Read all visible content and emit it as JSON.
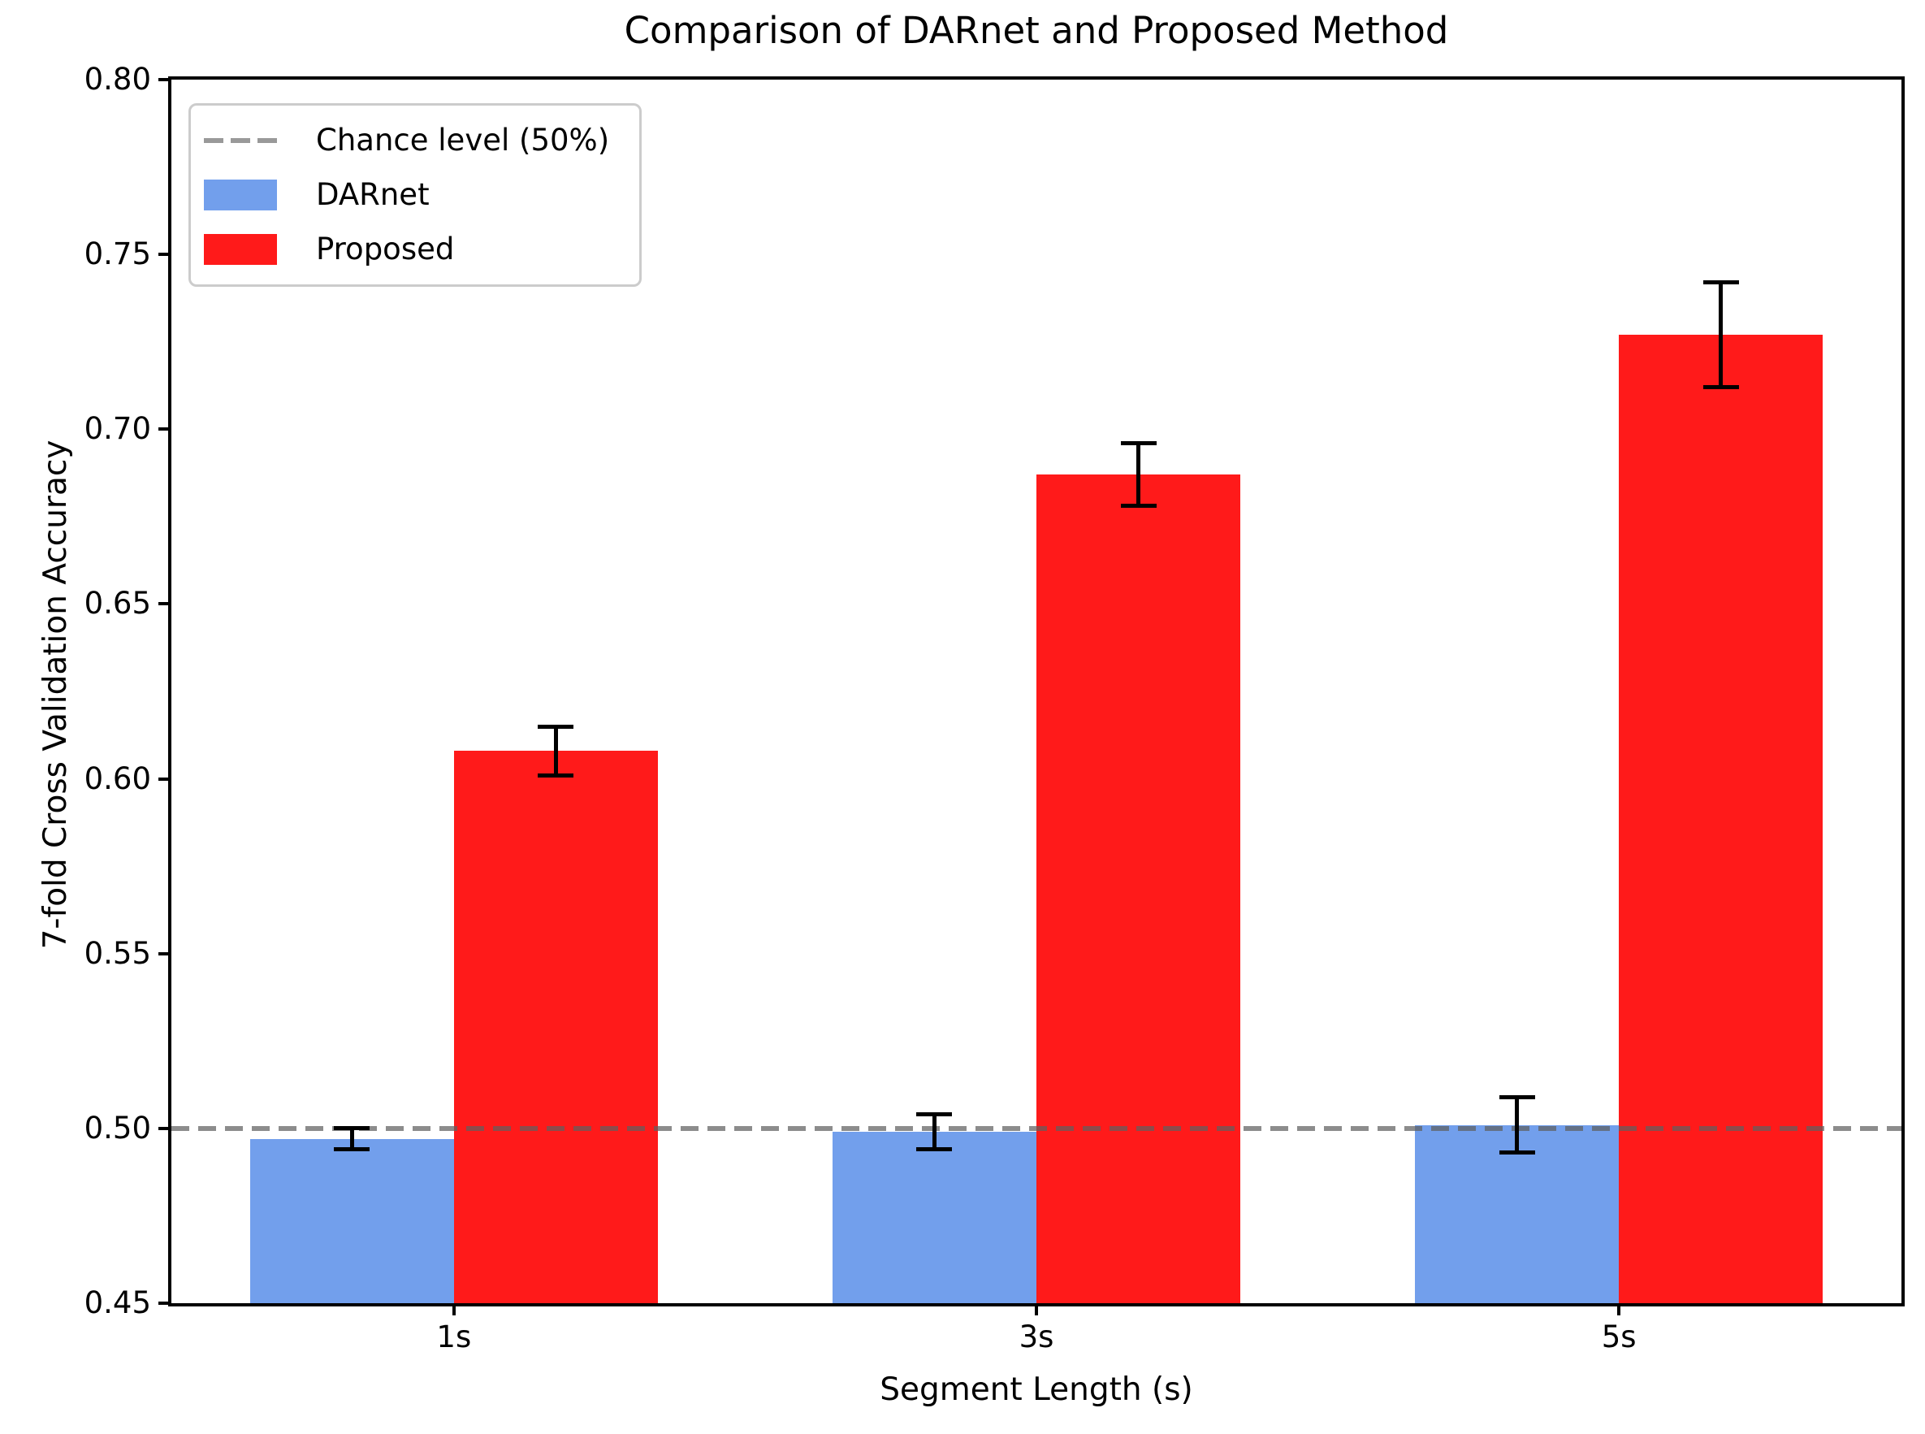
{
  "title": "Comparison of DARnet and Proposed Method",
  "chart_data": {
    "type": "bar",
    "title": "Comparison of DARnet and Proposed Method",
    "xlabel": "Segment Length (s)",
    "ylabel": "7-fold Cross Validation Accuracy",
    "categories": [
      "1s",
      "3s",
      "5s"
    ],
    "series": [
      {
        "name": "DARnet",
        "color": "#729fec",
        "values": [
          0.497,
          0.499,
          0.501
        ],
        "errors": [
          0.003,
          0.005,
          0.008
        ]
      },
      {
        "name": "Proposed",
        "color": "#ff1a1a",
        "values": [
          0.608,
          0.687,
          0.727
        ],
        "errors": [
          0.007,
          0.009,
          0.015
        ]
      }
    ],
    "reference_line": {
      "label": "Chance level (50%)",
      "value": 0.5,
      "color": "#808080",
      "style": "dashed"
    },
    "ylim": [
      0.45,
      0.8
    ],
    "yticks": [
      0.45,
      0.5,
      0.55,
      0.6,
      0.65,
      0.7,
      0.75,
      0.8
    ],
    "bar_width": 0.35,
    "grid": false,
    "error_bars": true,
    "legend_position": "upper left"
  },
  "legend": {
    "items": [
      {
        "label": "Chance level (50%)",
        "swatch": "dashed-line",
        "color": "#999999"
      },
      {
        "label": "DARnet",
        "swatch": "rect",
        "color": "#729fec"
      },
      {
        "label": "Proposed",
        "swatch": "rect",
        "color": "#ff1a1a"
      }
    ]
  }
}
